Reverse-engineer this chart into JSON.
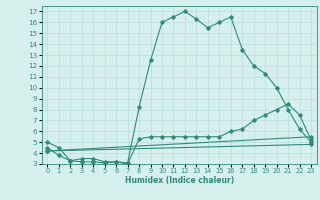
{
  "line1_x": [
    0,
    1,
    2,
    3,
    4,
    5,
    6,
    7,
    8,
    9,
    10,
    11,
    12,
    13,
    14,
    15,
    16,
    17,
    18,
    19,
    20,
    21,
    22,
    23
  ],
  "line1_y": [
    5.0,
    4.5,
    3.3,
    3.5,
    3.5,
    3.2,
    3.2,
    3.1,
    8.2,
    12.5,
    16.0,
    16.5,
    17.0,
    16.3,
    15.5,
    16.0,
    16.5,
    13.5,
    12.0,
    11.3,
    10.0,
    8.0,
    6.2,
    5.0
  ],
  "line2_x": [
    0,
    1,
    2,
    3,
    4,
    5,
    6,
    7,
    8,
    9,
    10,
    11,
    12,
    13,
    14,
    15,
    16,
    17,
    18,
    19,
    20,
    21,
    22,
    23
  ],
  "line2_y": [
    4.5,
    3.8,
    3.3,
    3.2,
    3.2,
    3.1,
    3.2,
    3.0,
    5.3,
    5.5,
    5.5,
    5.5,
    5.5,
    5.5,
    5.5,
    5.5,
    6.0,
    6.2,
    7.0,
    7.5,
    8.0,
    8.5,
    7.5,
    5.2
  ],
  "line3_x": [
    0,
    23
  ],
  "line3_y": [
    4.2,
    5.5
  ],
  "line4_x": [
    0,
    23
  ],
  "line4_y": [
    4.2,
    4.8
  ],
  "color": "#2e8b7a",
  "bg_color": "#d6f0ee",
  "grid_color": "#b8dcd8",
  "xlabel": "Humidex (Indice chaleur)",
  "ylabel_ticks": [
    3,
    4,
    5,
    6,
    7,
    8,
    9,
    10,
    11,
    12,
    13,
    14,
    15,
    16,
    17
  ],
  "xlabel_ticks": [
    0,
    1,
    2,
    3,
    4,
    5,
    6,
    7,
    8,
    9,
    10,
    11,
    12,
    13,
    14,
    15,
    16,
    17,
    18,
    19,
    20,
    21,
    22,
    23
  ],
  "ylim": [
    3,
    17.5
  ],
  "xlim": [
    -0.5,
    23.5
  ]
}
